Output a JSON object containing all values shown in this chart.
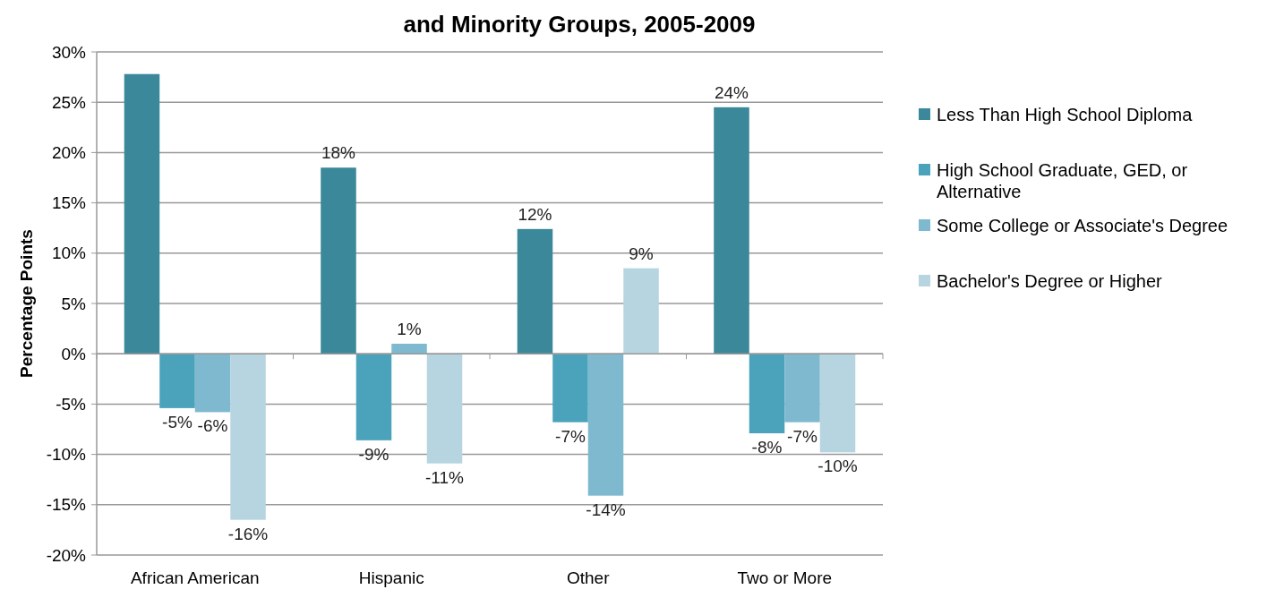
{
  "chart_data": {
    "type": "bar",
    "title": "and Minority Groups, 2005-2009",
    "ylabel": "Percentage Points",
    "categories": [
      "African American",
      "Hispanic",
      "Other",
      "Two or More"
    ],
    "series": [
      {
        "name": "Less Than High School Diploma",
        "color": "#3a8899",
        "values": [
          27.8,
          18.5,
          12.4,
          24.5
        ],
        "value_labels": [
          null,
          "18%",
          "12%",
          "24%"
        ]
      },
      {
        "name": "High School Graduate, GED, or Alternative",
        "color": "#4aa3bb",
        "values": [
          -5.4,
          -8.6,
          -6.8,
          -7.9
        ],
        "value_labels": [
          "-5%",
          "-9%",
          "-7%",
          "-8%"
        ]
      },
      {
        "name": "Some College or Associate's Degree",
        "color": "#7fb9cf",
        "values": [
          -5.8,
          1.0,
          -14.1,
          -6.8
        ],
        "value_labels": [
          "-6%",
          "1%",
          "-14%",
          "-7%"
        ]
      },
      {
        "name": "Bachelor's Degree or Higher",
        "color": "#b7d5e0",
        "values": [
          -16.5,
          -10.9,
          8.5,
          -9.8
        ],
        "value_labels": [
          "-16%",
          "-11%",
          "9%",
          "-10%"
        ]
      }
    ],
    "ylim": [
      -20,
      30
    ],
    "yticks": [
      {
        "value": -20,
        "label": "-20%"
      },
      {
        "value": -15,
        "label": "-15%"
      },
      {
        "value": -10,
        "label": "-10%"
      },
      {
        "value": -5,
        "label": "-5%"
      },
      {
        "value": 0,
        "label": "0%"
      },
      {
        "value": 5,
        "label": "5%"
      },
      {
        "value": 10,
        "label": "10%"
      },
      {
        "value": 15,
        "label": "15%"
      },
      {
        "value": 20,
        "label": "20%"
      },
      {
        "value": 25,
        "label": "25%"
      },
      {
        "value": 30,
        "label": "30%"
      }
    ],
    "grid": "y",
    "legend": "right"
  }
}
